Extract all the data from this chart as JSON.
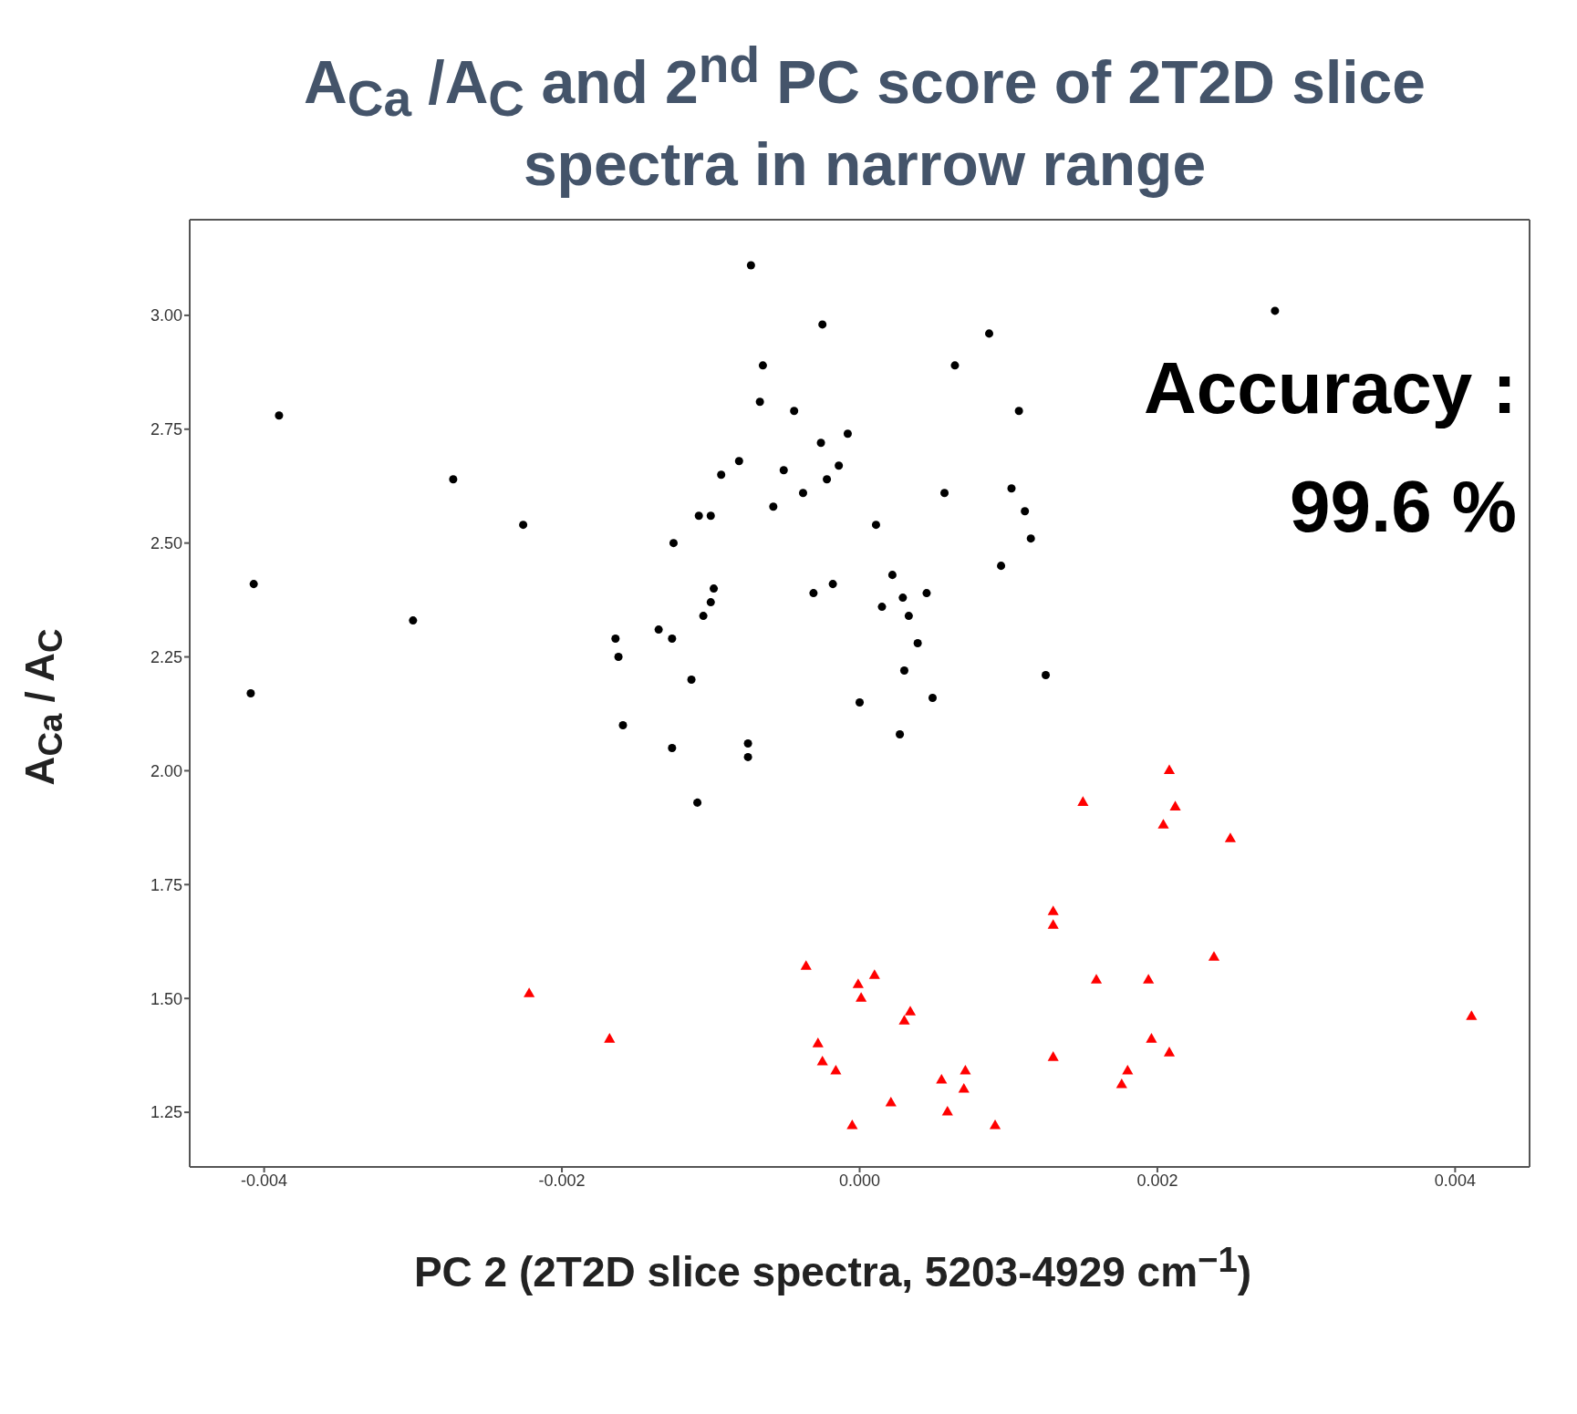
{
  "chart_data": {
    "type": "scatter",
    "title": "A$_{Ca}$ /A$_{C}$ and 2$^{nd}$ PC score of 2T2D slice spectra in narrow range",
    "xlabel": "PC 2 (2T2D slice spectra, 5203-4929 cm$^{−1}$)",
    "ylabel": "A$_{Ca}$ / A$_{C}$",
    "annotations": [
      "Accuracy :",
      "99.6 %"
    ],
    "xlim": [
      -0.0045,
      0.0045
    ],
    "ylim": [
      1.13,
      3.21
    ],
    "xticks": [
      {
        "value": -0.004,
        "label": "-0.004"
      },
      {
        "value": -0.002,
        "label": "-0.002"
      },
      {
        "value": 0,
        "label": "0.000"
      },
      {
        "value": 0.002,
        "label": "0.002"
      },
      {
        "value": 0.004,
        "label": "0.004"
      }
    ],
    "yticks": [
      1.25,
      {
        "value": 1.5,
        "label": "1.50"
      },
      1.75,
      {
        "value": 2,
        "label": "2.00"
      },
      2.25,
      {
        "value": 2.5,
        "label": "2.50"
      },
      2.75,
      {
        "value": 3,
        "label": "3.00"
      }
    ],
    "grid": false,
    "legend": false,
    "series": [
      {
        "color": "#000000",
        "marker": "circle",
        "x": [
          -0.00073,
          -0.00025,
          0.00279,
          0.00087,
          -0.00065,
          0.00064,
          -0.0039,
          -0.00067,
          -0.00044,
          0.00107,
          -8e-05,
          -0.00026,
          -0.00273,
          -0.00081,
          -0.00093,
          -0.00051,
          -0.00014,
          -0.00022,
          -0.00038,
          0.00057,
          0.00102,
          -0.00058,
          0.00111,
          -0.00226,
          -0.00108,
          -0.001,
          0.00011,
          -0.00125,
          0.00115,
          0.00095,
          -0.00407,
          -0.00018,
          0.00022,
          -0.00031,
          0.00045,
          -0.00098,
          -0.001,
          -0.00105,
          -0.003,
          0.00015,
          0.00029,
          0.00033,
          -0.00135,
          -0.00126,
          -0.00164,
          -0.00162,
          0.00039,
          -0.00113,
          0.00125,
          0.0003,
          -0.00409,
          0,
          0.00049,
          -0.00159,
          -0.00126,
          0.00027,
          -0.00075,
          -0.00075,
          -0.00109
        ],
        "values": [
          3.11,
          2.98,
          3.01,
          2.96,
          2.89,
          2.89,
          2.78,
          2.81,
          2.79,
          2.79,
          2.74,
          2.72,
          2.64,
          2.68,
          2.65,
          2.66,
          2.67,
          2.64,
          2.61,
          2.61,
          2.62,
          2.58,
          2.57,
          2.54,
          2.56,
          2.56,
          2.54,
          2.5,
          2.51,
          2.45,
          2.41,
          2.41,
          2.43,
          2.39,
          2.39,
          2.4,
          2.37,
          2.34,
          2.33,
          2.36,
          2.38,
          2.34,
          2.31,
          2.29,
          2.29,
          2.25,
          2.28,
          2.2,
          2.21,
          2.22,
          2.17,
          2.15,
          2.16,
          2.1,
          2.05,
          2.08,
          2.06,
          2.03,
          1.93
        ]
      },
      {
        "color": "#ff0000",
        "marker": "triangle",
        "x": [
          0.00208,
          0.0015,
          0.00212,
          0.00204,
          0.00249,
          0.0013,
          0.0013,
          0.00238,
          -0.00036,
          0.0001,
          0.00159,
          0.00194,
          -0.00222,
          -1e-05,
          1e-05,
          0.00034,
          0.0003,
          0.00411,
          -0.00168,
          0.00196,
          -0.00028,
          -0.00025,
          -0.00016,
          0.0013,
          0.00208,
          0.00071,
          0.0018,
          0.00055,
          0.00176,
          0.0007,
          0.00021,
          0.00059,
          -5e-05,
          0.00091
        ],
        "values": [
          2.0,
          1.93,
          1.92,
          1.88,
          1.85,
          1.69,
          1.66,
          1.59,
          1.57,
          1.55,
          1.54,
          1.54,
          1.51,
          1.53,
          1.5,
          1.47,
          1.45,
          1.46,
          1.41,
          1.41,
          1.4,
          1.36,
          1.34,
          1.37,
          1.38,
          1.34,
          1.34,
          1.32,
          1.31,
          1.3,
          1.27,
          1.25,
          1.22,
          1.22
        ]
      }
    ]
  }
}
